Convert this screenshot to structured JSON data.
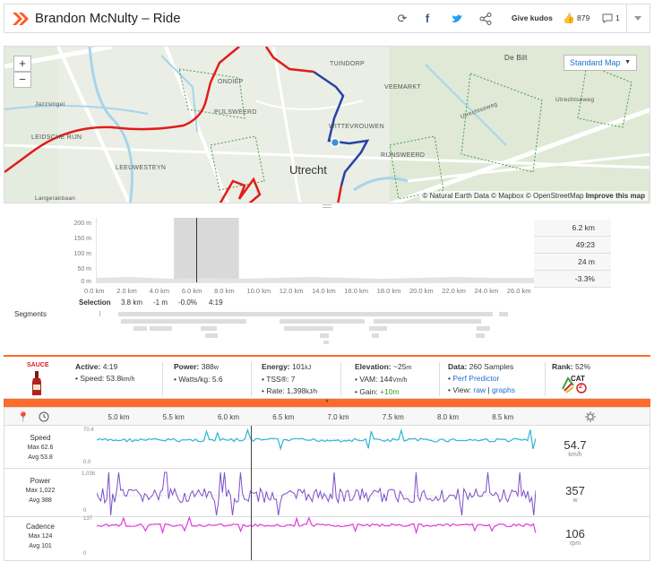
{
  "header": {
    "title": "Brandon McNulty – Ride",
    "kudos_label": "Give kudos",
    "kudos_count": "879",
    "comment_count": "1",
    "icons": [
      "strava-logo-icon",
      "refresh-icon",
      "facebook-icon",
      "twitter-icon",
      "share-icon",
      "thumbs-up-icon",
      "comment-icon",
      "chevron-down-icon"
    ]
  },
  "map": {
    "zoom_in": "+",
    "zoom_out": "−",
    "style_label": "Standard Map",
    "attribution": "© Natural Earth Data © Mapbox © OpenStreetMap",
    "improve_link": "Improve this map",
    "labels": {
      "city": "Utrecht",
      "tuindorp": "TUINDORP",
      "de_bilt": "De Bilt",
      "ondiep": "ONDIEP",
      "pijlsweerd": "PIJLSWEERD",
      "veemarkt": "VEEMARKT",
      "wittevrouwen": "WITTEVROUWEN",
      "rijnsweerd": "RIJNSWEERD",
      "leidsche_rijn": "LEIDSCHE RIJN",
      "leeuwesteyn": "LEEUWESTEYN",
      "jazzsingel": "Jazzsingel",
      "langerakbaan": "Langerakbaan",
      "utrechtseweg": "Utrechtseweg",
      "utrechtseweg2": "Utrechtseweg"
    }
  },
  "elevation": {
    "y_ticks": [
      "200 m",
      "150 m",
      "100 m",
      "50 m",
      "0 m"
    ],
    "x_ticks": [
      "0.0 km",
      "2.0 km",
      "4.0 km",
      "6.0 km",
      "8.0 km",
      "10.0 km",
      "12.0 km",
      "14.0 km",
      "16.0 km",
      "18.0 km",
      "20.0 km",
      "22.0 km",
      "24.0 km",
      "26.0 km"
    ],
    "stats": [
      "6.2 km",
      "49:23",
      "24 m",
      "-3.3%"
    ],
    "selection_label": "Selection",
    "selection_values": [
      "3.8 km",
      "-1 m",
      "-0.0%",
      "4:19"
    ],
    "segments_label": "Segments",
    "selection_range_km": [
      4.8,
      8.8
    ],
    "cursor_km": 6.2,
    "x_max_km": 27
  },
  "summary": {
    "sauce_label": "SAUCE",
    "active_label": "Active:",
    "active_value": "4:19",
    "speed_label": "Speed:",
    "speed_value": "53.8",
    "speed_unit": "km/h",
    "power_label": "Power:",
    "power_value": "388",
    "power_unit": "w",
    "wkg_label": "Watts/kg:",
    "wkg_value": "5.6",
    "energy_label": "Energy:",
    "energy_value": "101",
    "energy_unit": "kJ",
    "tss_label": "TSS®:",
    "tss_value": "7",
    "rate_label": "Rate:",
    "rate_value": "1,398",
    "rate_unit": "kJ/h",
    "elevation_label": "Elevation:",
    "elevation_value": "~25",
    "elevation_unit": "m",
    "vam_label": "VAM:",
    "vam_value": "144",
    "vam_unit": "Vm/h",
    "gain_label": "Gain:",
    "gain_value": "+10m",
    "data_label": "Data:",
    "data_value": "260 Samples",
    "perf_link": "Perf Predictor",
    "view_label": "View:",
    "raw_link": "raw",
    "graphs_link": "graphs",
    "rank_label": "Rank:",
    "rank_value": "52%",
    "cat_badge": "CAT",
    "cat_num": "2"
  },
  "streams": {
    "marker": "*",
    "x_ticks": [
      "5.0 km",
      "5.5 km",
      "6.0 km",
      "6.5 km",
      "7.0 km",
      "7.5 km",
      "8.0 km",
      "8.5 km"
    ],
    "x_range_km": [
      4.8,
      8.8
    ],
    "cursor_km": 6.2,
    "rows": [
      {
        "name": "Speed",
        "max_label": "Max",
        "max": "62.6",
        "avg_label": "Avg",
        "avg": "53.8",
        "value": "54.7",
        "unit": "km/h",
        "ytop": "70.4",
        "ybot": "0.0",
        "color": "#2fb6d6"
      },
      {
        "name": "Power",
        "max_label": "Max",
        "max": "1,022",
        "avg_label": "Avg",
        "avg": "388",
        "value": "357",
        "unit": "w",
        "ytop": "1,036",
        "ybot": "0",
        "color": "#7b4fc9"
      },
      {
        "name": "Cadence",
        "max_label": "Max",
        "max": "124",
        "avg_label": "Avg",
        "avg": "101",
        "value": "106",
        "unit": "rpm",
        "ytop": "137",
        "ybot": "0",
        "color": "#e23be0"
      }
    ]
  }
}
